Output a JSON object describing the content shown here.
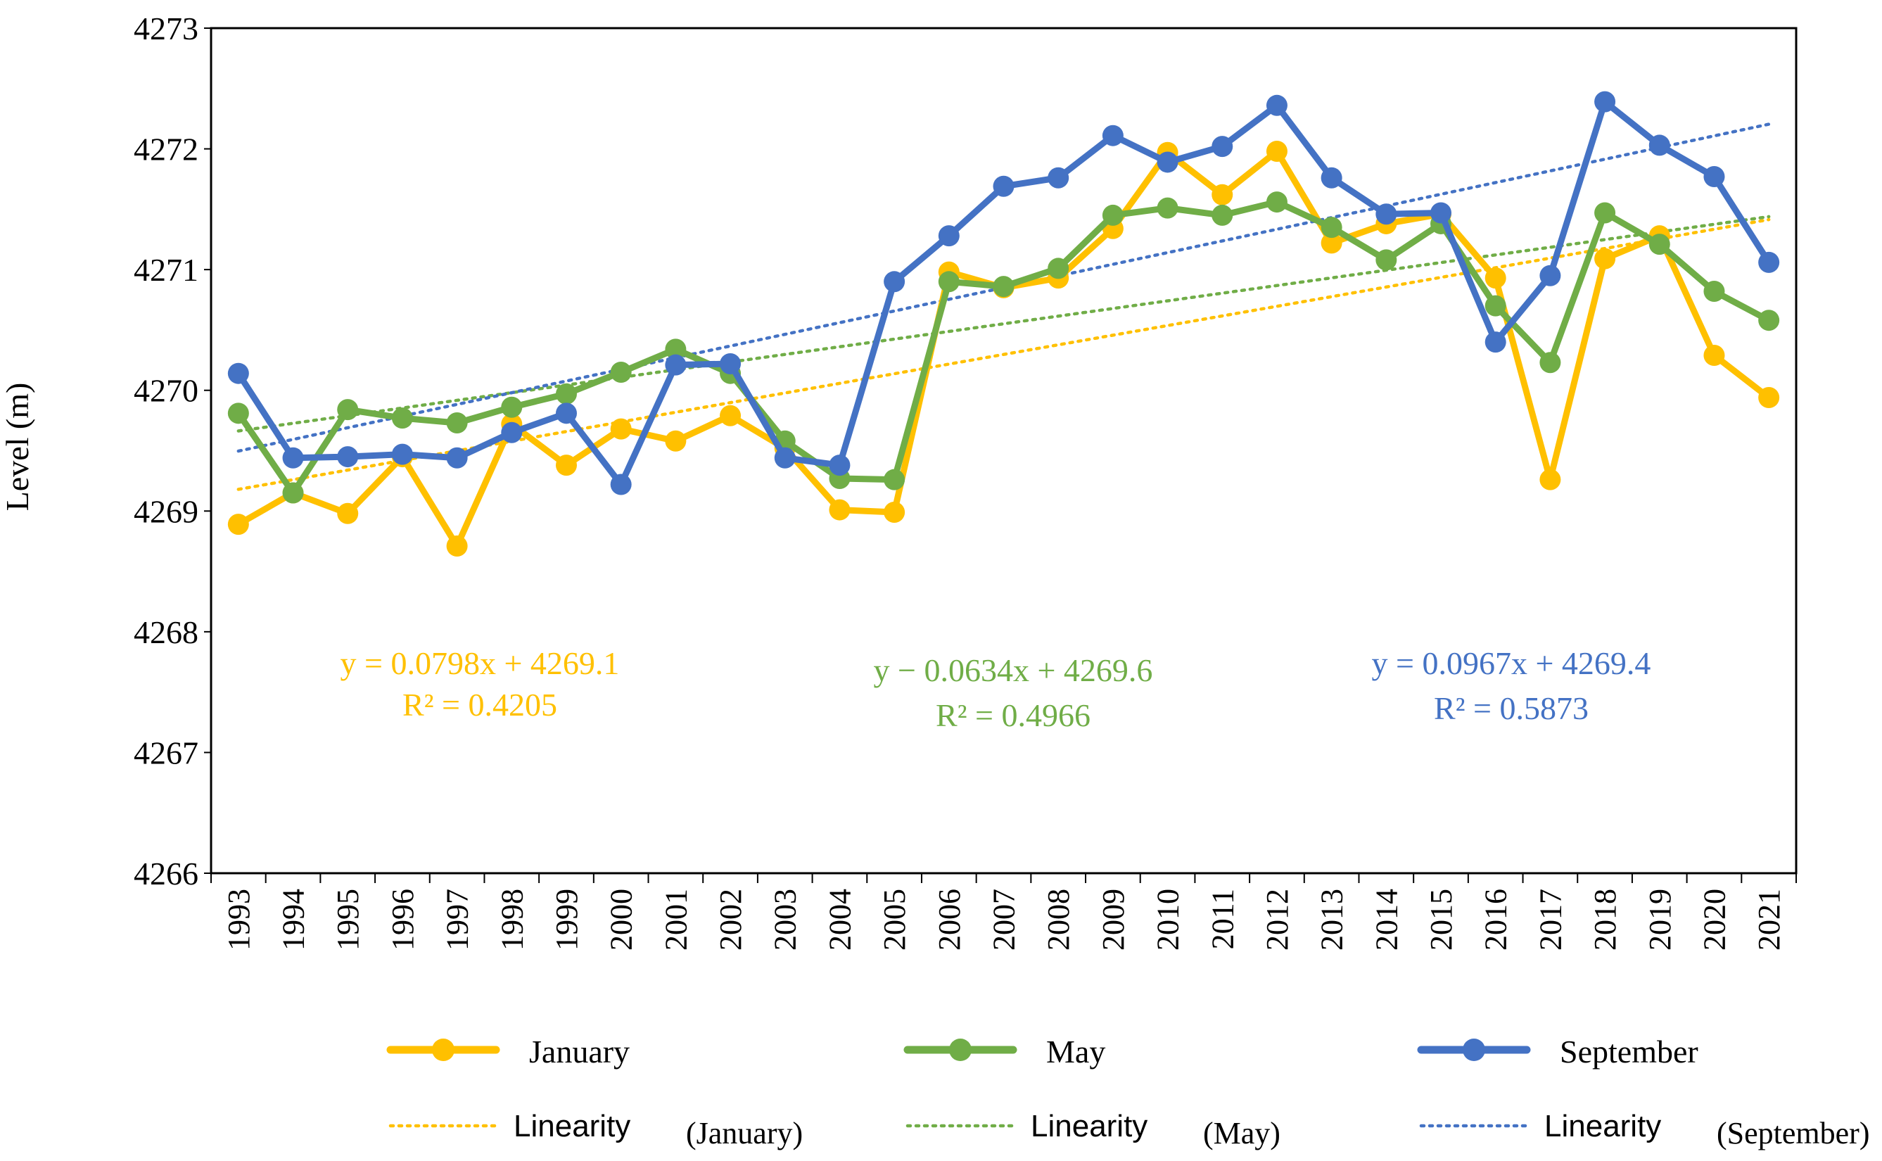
{
  "chart_data": {
    "type": "line",
    "ylabel": "Level (m)",
    "xlabel": "",
    "ylim": [
      4266,
      4273
    ],
    "yticks": [
      4266,
      4267,
      4268,
      4269,
      4270,
      4271,
      4272,
      4273
    ],
    "categories": [
      "1993",
      "1994",
      "1995",
      "1996",
      "1997",
      "1998",
      "1999",
      "2000",
      "2001",
      "2002",
      "2003",
      "2004",
      "2005",
      "2006",
      "2007",
      "2008",
      "2009",
      "2010",
      "2011",
      "2012",
      "2013",
      "2014",
      "2015",
      "2016",
      "2017",
      "2018",
      "2019",
      "2020",
      "2021"
    ],
    "series": [
      {
        "name": "January",
        "color": "#FFC000",
        "values": [
          4268.89,
          4269.15,
          4268.98,
          4269.45,
          4268.71,
          4269.72,
          4269.38,
          4269.68,
          4269.58,
          4269.79,
          4269.52,
          4269.01,
          4268.99,
          4270.98,
          4270.85,
          4270.93,
          4271.34,
          4271.97,
          4271.62,
          4271.98,
          4271.22,
          4271.38,
          4271.46,
          4270.93,
          4269.26,
          4271.09,
          4271.28,
          4270.29,
          4269.94
        ],
        "trend": {
          "slope": 0.0798,
          "intercept": 4269.1,
          "legend": "Linearity",
          "legend_suffix": "(January)",
          "equation": "y = 0.0798x + 4269.1",
          "r2": "R² = 0.4205"
        }
      },
      {
        "name": "May",
        "color": "#70AD47",
        "values": [
          4269.81,
          4269.15,
          4269.84,
          4269.77,
          4269.73,
          4269.86,
          4269.97,
          4270.15,
          4270.34,
          4270.14,
          4269.58,
          4269.27,
          4269.26,
          4270.9,
          4270.86,
          4271.01,
          4271.45,
          4271.51,
          4271.45,
          4271.56,
          4271.35,
          4271.08,
          4271.38,
          4270.7,
          4270.23,
          4271.47,
          4271.21,
          4270.82,
          4270.58
        ],
        "trend": {
          "slope": 0.0634,
          "intercept": 4269.6,
          "legend": "Linearity",
          "legend_suffix": "(May)",
          "equation": "y − 0.0634x + 4269.6",
          "r2": "R² = 0.4966"
        }
      },
      {
        "name": "September",
        "color": "#4472C4",
        "values": [
          4270.14,
          4269.44,
          4269.45,
          4269.47,
          4269.44,
          4269.65,
          4269.81,
          4269.22,
          4270.21,
          4270.22,
          4269.44,
          4269.38,
          4270.9,
          4271.28,
          4271.69,
          4271.76,
          4272.11,
          4271.89,
          4272.02,
          4272.36,
          4271.76,
          4271.46,
          4271.47,
          4270.4,
          4270.95,
          4272.39,
          4272.03,
          4271.77,
          4271.06
        ],
        "trend": {
          "slope": 0.0967,
          "intercept": 4269.4,
          "legend": "Linearity",
          "legend_suffix": "(September)",
          "equation": "y = 0.0967x + 4269.4",
          "r2": "R² = 0.5873"
        }
      }
    ]
  }
}
